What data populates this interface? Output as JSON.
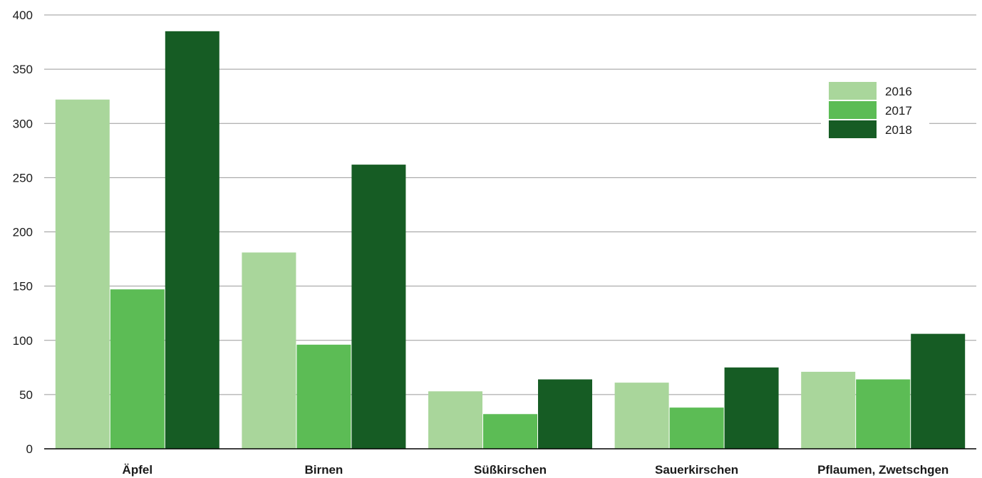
{
  "chart_data": {
    "type": "bar",
    "categories": [
      "Äpfel",
      "Birnen",
      "Süßkirschen",
      "Sauerkirschen",
      "Pflaumen, Zwetschgen"
    ],
    "series": [
      {
        "name": "2016",
        "color": "#a9d69b",
        "values": [
          322,
          181,
          53,
          61,
          71
        ]
      },
      {
        "name": "2017",
        "color": "#5cbc55",
        "values": [
          147,
          96,
          32,
          38,
          64
        ]
      },
      {
        "name": "2018",
        "color": "#165c24",
        "values": [
          385,
          262,
          64,
          75,
          106
        ]
      }
    ],
    "ylim": [
      0,
      400
    ],
    "yticks": [
      "0",
      "50",
      "100",
      "150",
      "200",
      "250",
      "300",
      "350",
      "400"
    ],
    "grid": true,
    "legend_position": "top-right"
  }
}
